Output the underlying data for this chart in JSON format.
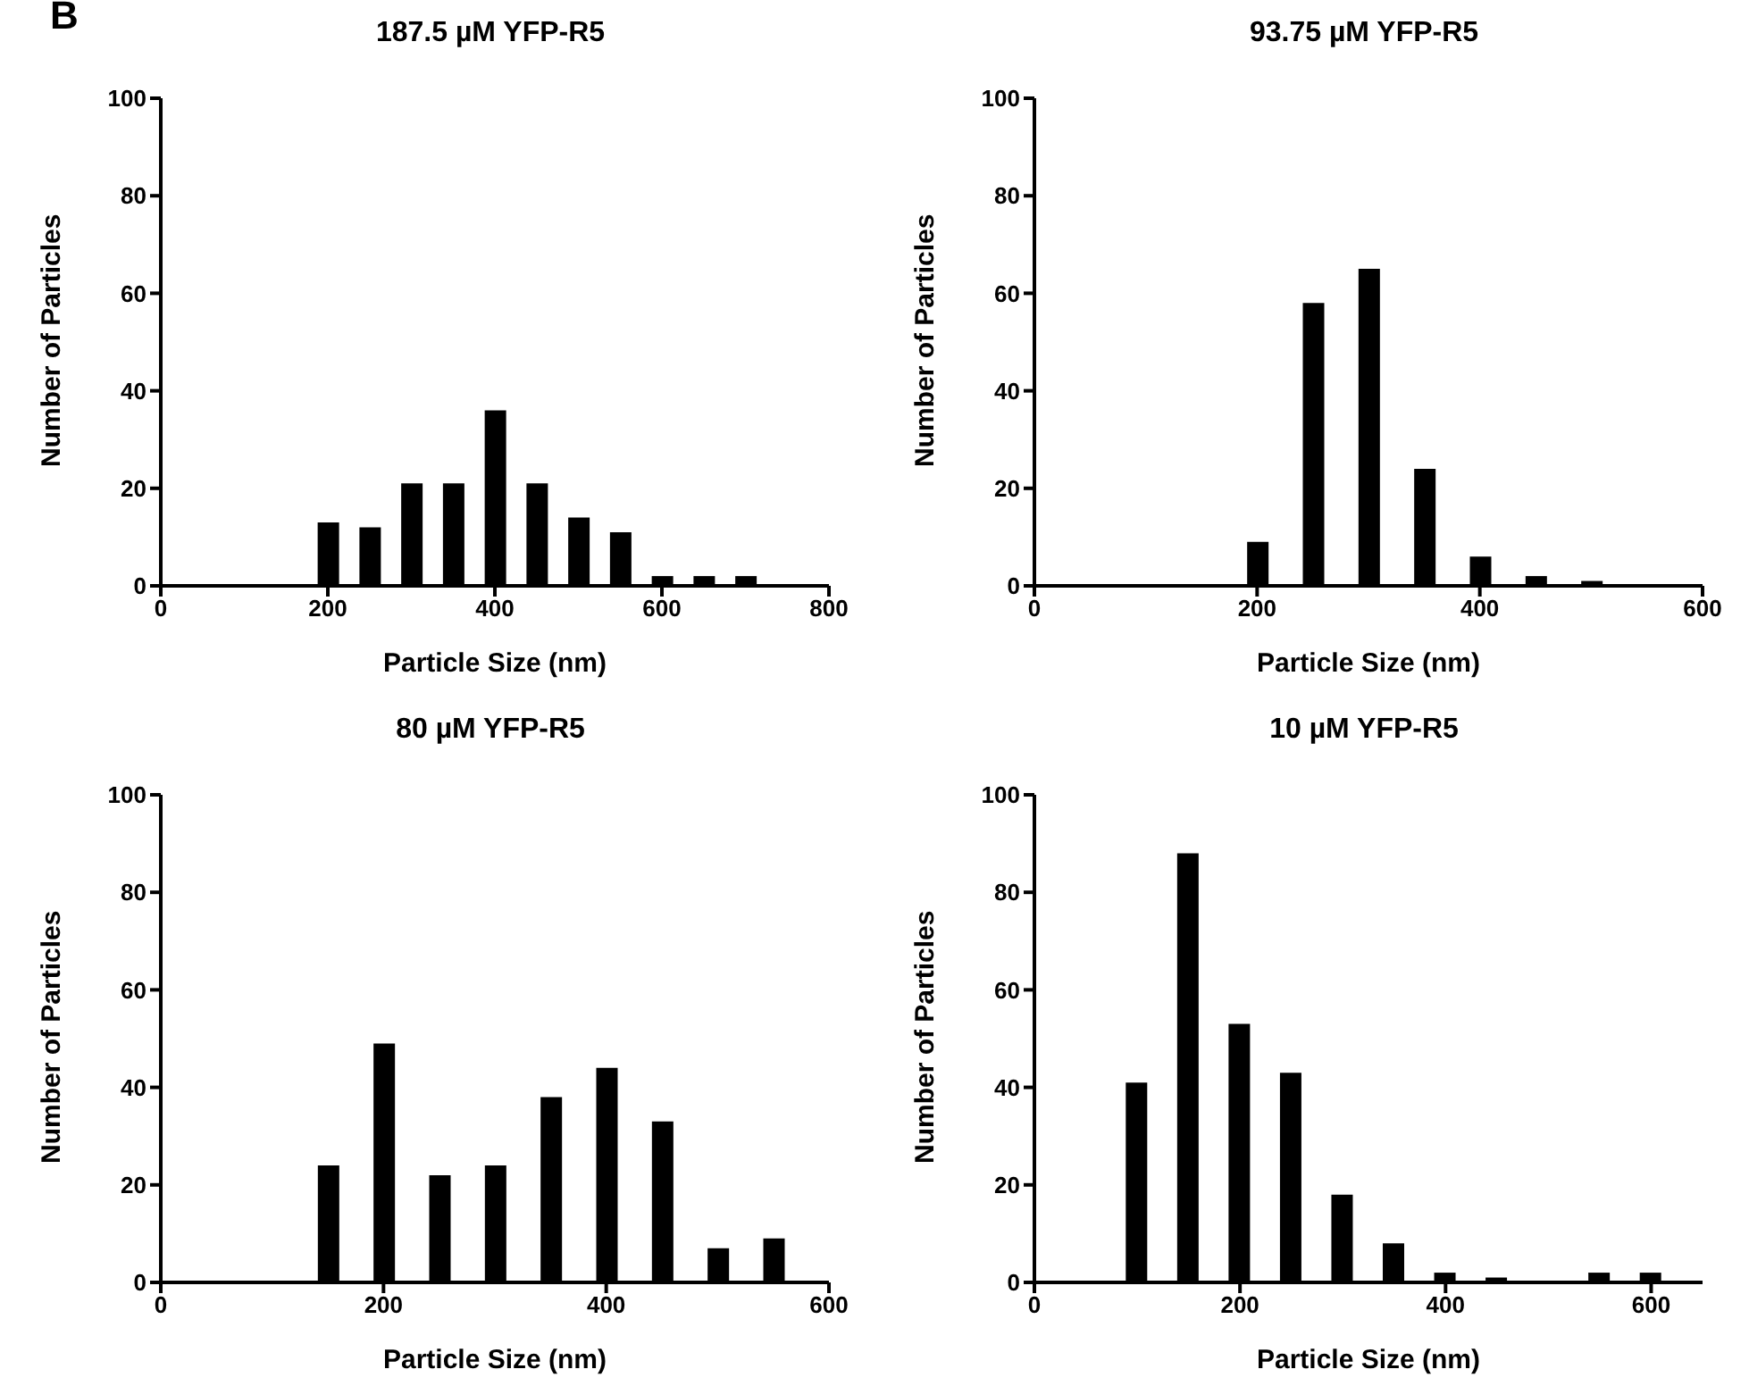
{
  "chart_data": [
    {
      "type": "bar",
      "title": "187.5 µM YFP-R5",
      "xlabel": "Particle Size (nm)",
      "ylabel": "Number of Particles",
      "annotations": [
        "B"
      ],
      "x": [
        200,
        250,
        300,
        350,
        400,
        450,
        500,
        550,
        600,
        650,
        700
      ],
      "values": [
        13,
        12,
        21,
        21,
        36,
        21,
        14,
        11,
        2,
        2,
        2
      ],
      "color": "#000000",
      "xlim": [
        0,
        800
      ],
      "xticks": [
        0,
        200,
        400,
        600,
        800
      ],
      "ylim": [
        0,
        100
      ],
      "yticks": [
        0,
        20,
        40,
        60,
        80,
        100
      ],
      "grid": false,
      "legend": false
    },
    {
      "type": "bar",
      "title": "93.75 µM YFP-R5",
      "xlabel": "Particle Size (nm)",
      "ylabel": "Number of Particles",
      "x": [
        200,
        250,
        300,
        350,
        400,
        450,
        500
      ],
      "values": [
        9,
        58,
        65,
        24,
        6,
        2,
        1
      ],
      "color": "#000000",
      "xlim": [
        0,
        600
      ],
      "xticks": [
        0,
        200,
        400,
        600
      ],
      "ylim": [
        0,
        100
      ],
      "yticks": [
        0,
        20,
        40,
        60,
        80,
        100
      ],
      "grid": false,
      "legend": false
    },
    {
      "type": "bar",
      "title": "80 µM YFP-R5",
      "xlabel": "Particle Size (nm)",
      "ylabel": "Number of Particles",
      "x": [
        150,
        200,
        250,
        300,
        350,
        400,
        450,
        500,
        550
      ],
      "values": [
        24,
        49,
        22,
        24,
        38,
        44,
        33,
        7,
        9
      ],
      "color": "#000000",
      "xlim": [
        0,
        600
      ],
      "xticks": [
        0,
        200,
        400,
        600
      ],
      "ylim": [
        0,
        100
      ],
      "yticks": [
        0,
        20,
        40,
        60,
        80,
        100
      ],
      "grid": false,
      "legend": false
    },
    {
      "type": "bar",
      "title": "10 µM YFP-R5",
      "xlabel": "Particle Size (nm)",
      "ylabel": "Number of Particles",
      "x": [
        100,
        150,
        200,
        250,
        300,
        350,
        400,
        450,
        550,
        600
      ],
      "values": [
        41,
        88,
        53,
        43,
        18,
        8,
        2,
        1,
        2,
        2
      ],
      "color": "#000000",
      "xlim": [
        0,
        650
      ],
      "xticks": [
        0,
        200,
        400,
        600
      ],
      "ylim": [
        0,
        100
      ],
      "yticks": [
        0,
        20,
        40,
        60,
        80,
        100
      ],
      "grid": false,
      "legend": false
    }
  ]
}
